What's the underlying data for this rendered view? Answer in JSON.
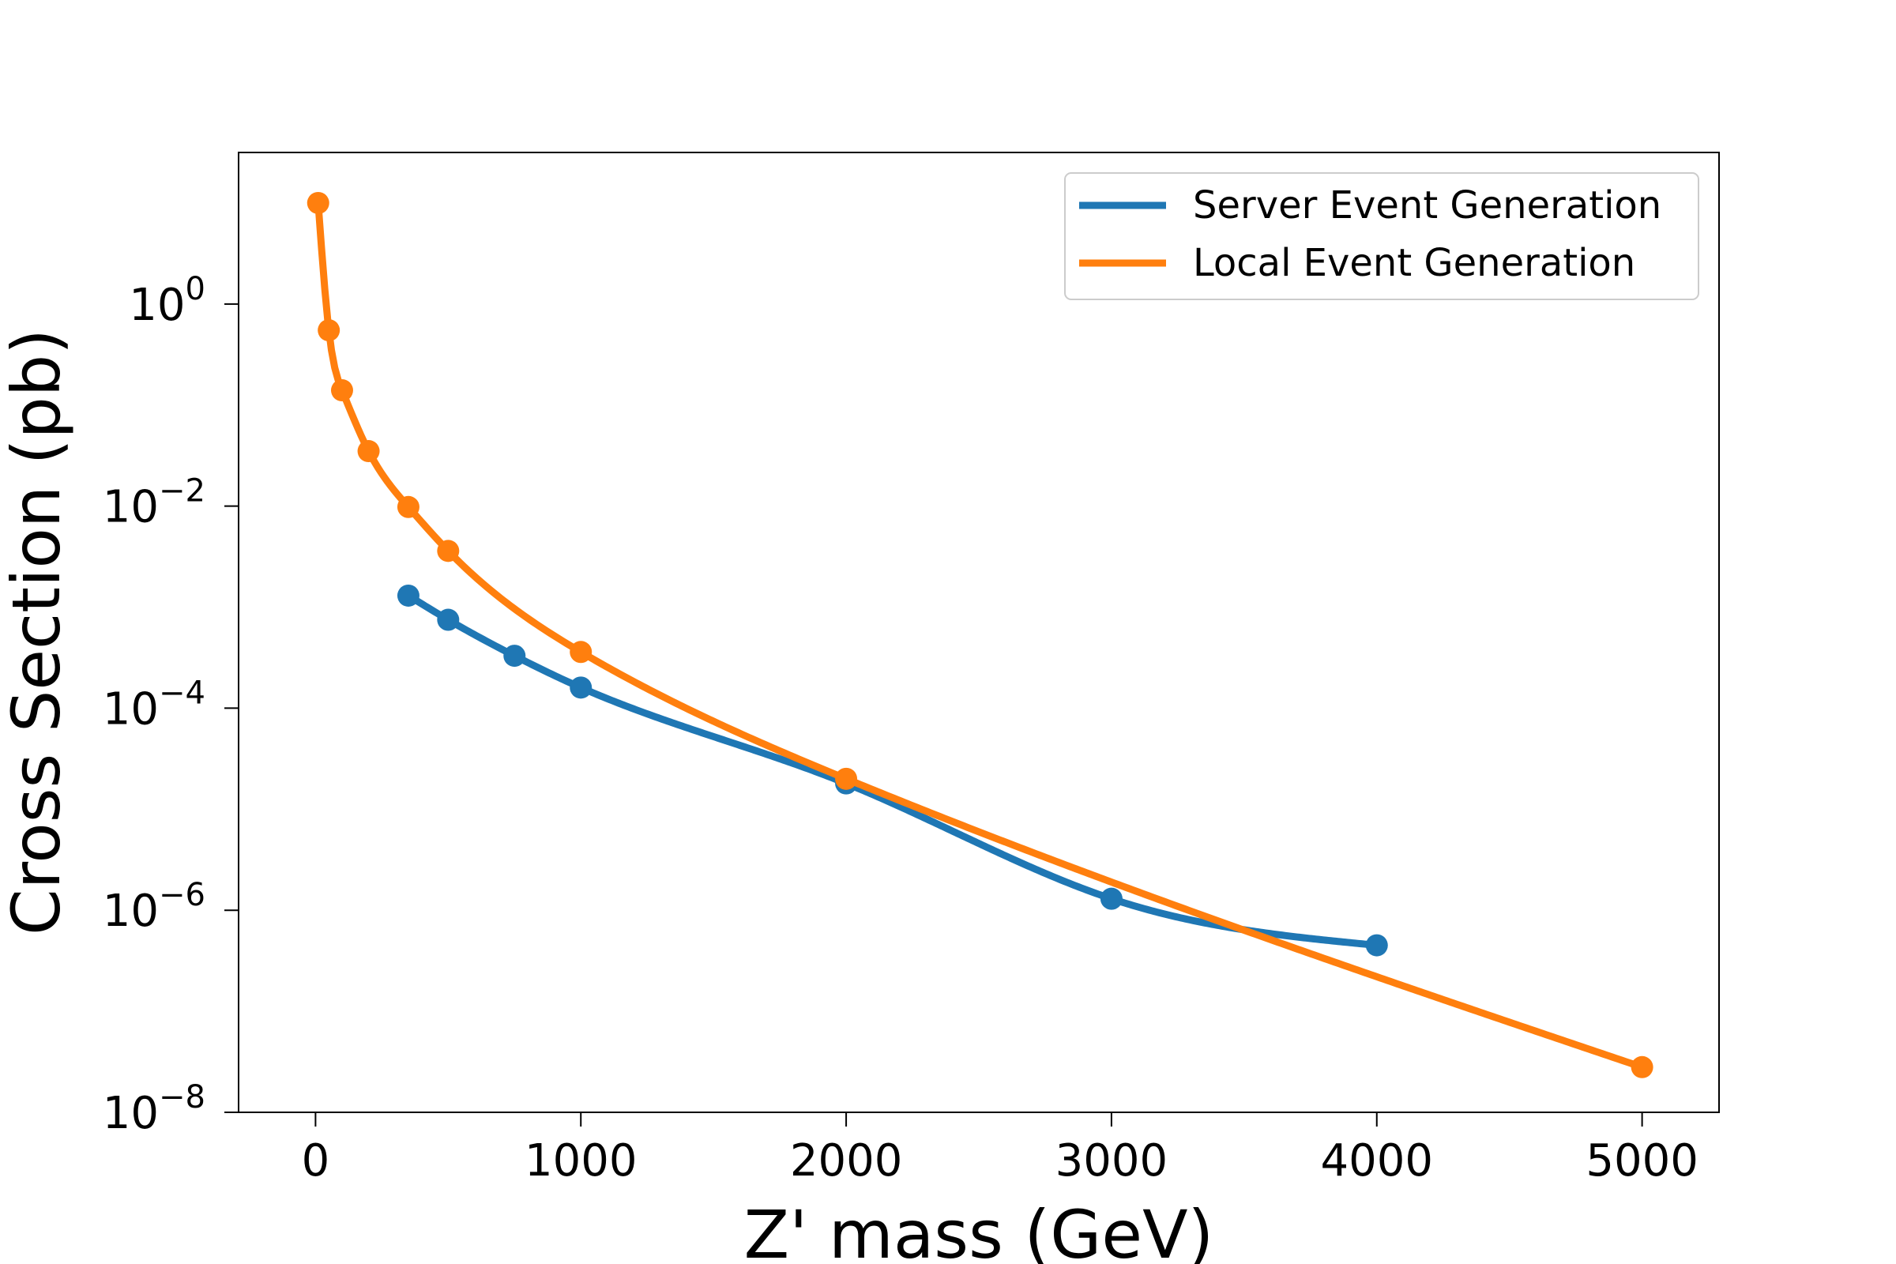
{
  "chart_data": {
    "type": "line",
    "title": "",
    "xlabel": "Z' mass (GeV)",
    "ylabel": "Cross Section (pb)",
    "xlim": [
      -290,
      5290
    ],
    "ylim_log10": [
      -8,
      1.5
    ],
    "yscale": "log",
    "grid": false,
    "legend_position": "top-right",
    "x_ticks": [
      0,
      1000,
      2000,
      3000,
      4000,
      5000
    ],
    "x_tick_labels": [
      "0",
      "1000",
      "2000",
      "3000",
      "4000",
      "5000"
    ],
    "y_ticks_log10": [
      0,
      -2,
      -4,
      -6,
      -8
    ],
    "y_tick_bases": [
      "10",
      "10",
      "10",
      "10",
      "10"
    ],
    "y_tick_exponents": [
      "0",
      "−2",
      "−4",
      "−6",
      "−8"
    ],
    "series": [
      {
        "name": "Server Event Generation",
        "color": "#1f77b4",
        "x": [
          350,
          500,
          750,
          1000,
          2000,
          3000,
          4000
        ],
        "y": [
          0.0013,
          0.00075,
          0.00033,
          0.00016,
          1.8e-05,
          1.3e-06,
          4.5e-07
        ]
      },
      {
        "name": "Local Event Generation",
        "color": "#ff7f0e",
        "x": [
          10,
          50,
          100,
          200,
          350,
          500,
          1000,
          2000,
          5000
        ],
        "y": [
          10,
          0.55,
          0.14,
          0.035,
          0.0098,
          0.0036,
          0.00036,
          2e-05,
          2.8e-08
        ]
      }
    ]
  }
}
